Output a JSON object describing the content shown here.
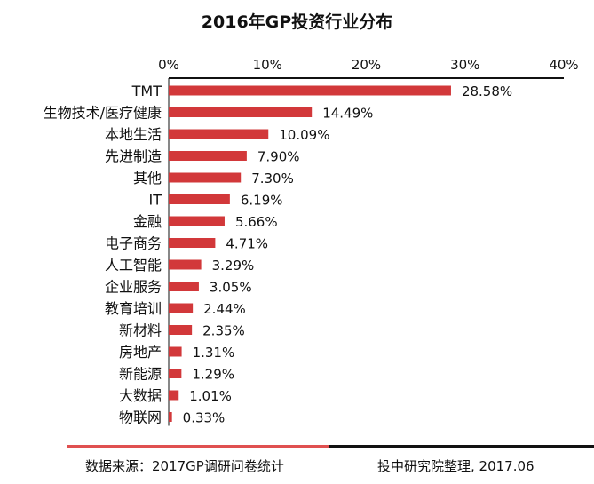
{
  "chart_data": {
    "type": "bar",
    "orientation": "horizontal",
    "title": "2016年GP投资行业分布",
    "categories": [
      "TMT",
      "生物技术/医疗健康",
      "本地生活",
      "先进制造",
      "其他",
      "IT",
      "金融",
      "电子商务",
      "人工智能",
      "企业服务",
      "教育培训",
      "新材料",
      "房地产",
      "新能源",
      "大数据",
      "物联网"
    ],
    "values": [
      28.58,
      14.49,
      10.09,
      7.9,
      7.3,
      6.19,
      5.66,
      4.71,
      3.29,
      3.05,
      2.44,
      2.35,
      1.31,
      1.29,
      1.01,
      0.33
    ],
    "value_labels": [
      "28.58%",
      "14.49%",
      "10.09%",
      "7.90%",
      "7.30%",
      "6.19%",
      "5.66%",
      "4.71%",
      "3.29%",
      "3.05%",
      "2.44%",
      "2.35%",
      "1.31%",
      "1.29%",
      "1.01%",
      "0.33%"
    ],
    "x_ticks": [
      "0%",
      "10%",
      "20%",
      "30%",
      "40%"
    ],
    "xlim": [
      0,
      40
    ],
    "axis_position": "top",
    "grid": false,
    "bar_color": "#d2383a"
  },
  "footer": {
    "source": "数据来源：2017GP调研问卷统计",
    "credit": "投中研究院整理, 2017.06"
  }
}
